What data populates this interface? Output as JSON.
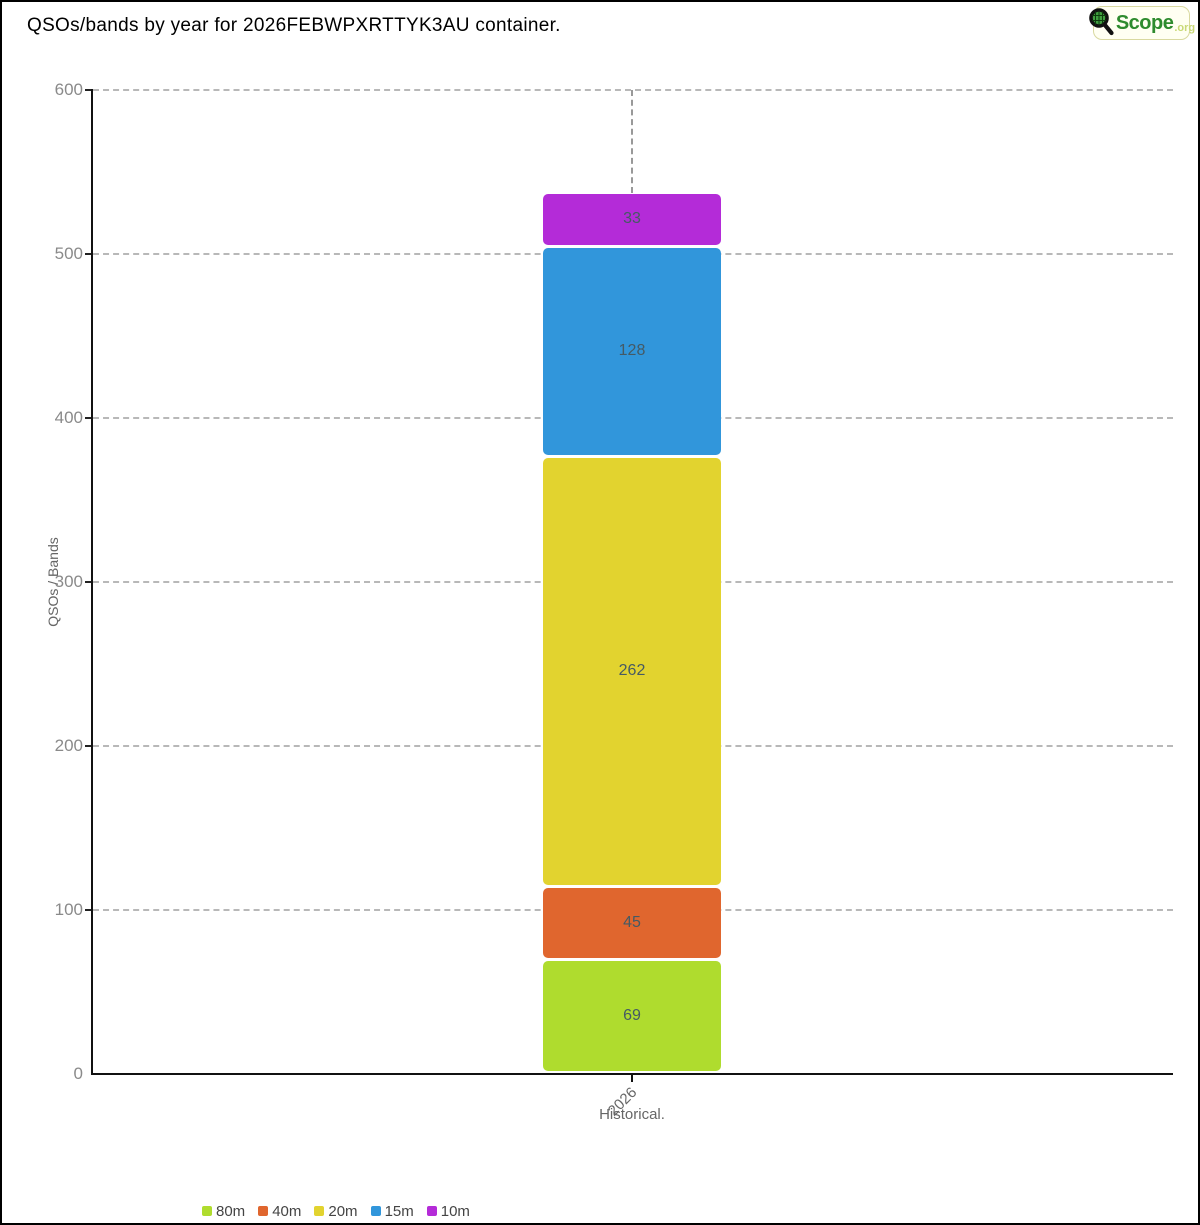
{
  "header": {
    "title": "QSOs/bands by year for 2026FEBWPXRTTYK3AU container."
  },
  "logo": {
    "scope": "Scope",
    "org": ".org"
  },
  "axes": {
    "y_label": "QSOs / Bands",
    "x_tick": "2026",
    "x_label": "Historical."
  },
  "chart_data": {
    "type": "bar",
    "stacked": true,
    "title": "QSOs/bands by year for 2026FEBWPXRTTYK3AU container.",
    "categories": [
      "2026"
    ],
    "xlabel": "Historical.",
    "ylabel": "QSOs / Bands",
    "ylim": [
      0,
      600
    ],
    "yticks": [
      0,
      100,
      200,
      300,
      400,
      500,
      600
    ],
    "grid": "horizontal-dashed",
    "legend_position": "bottom",
    "series": [
      {
        "name": "80m",
        "color": "#afdc2e",
        "values": [
          69
        ]
      },
      {
        "name": "40m",
        "color": "#e0662e",
        "values": [
          45
        ]
      },
      {
        "name": "20m",
        "color": "#e2d32f",
        "values": [
          262
        ]
      },
      {
        "name": "15m",
        "color": "#3196db",
        "values": [
          128
        ]
      },
      {
        "name": "10m",
        "color": "#b42bd8",
        "values": [
          33
        ]
      }
    ],
    "stack_total": 537
  },
  "colors": {
    "axis": "#111111",
    "grid": "#b8b8b8",
    "tick_label": "#8a8a8a",
    "value_label": "#455a64",
    "legend_text": "#444444",
    "logo_green": "#2e8b2e",
    "logo_light": "#c9d977",
    "logo_bg": "#fffff2",
    "logo_border": "#d9d9a0"
  }
}
